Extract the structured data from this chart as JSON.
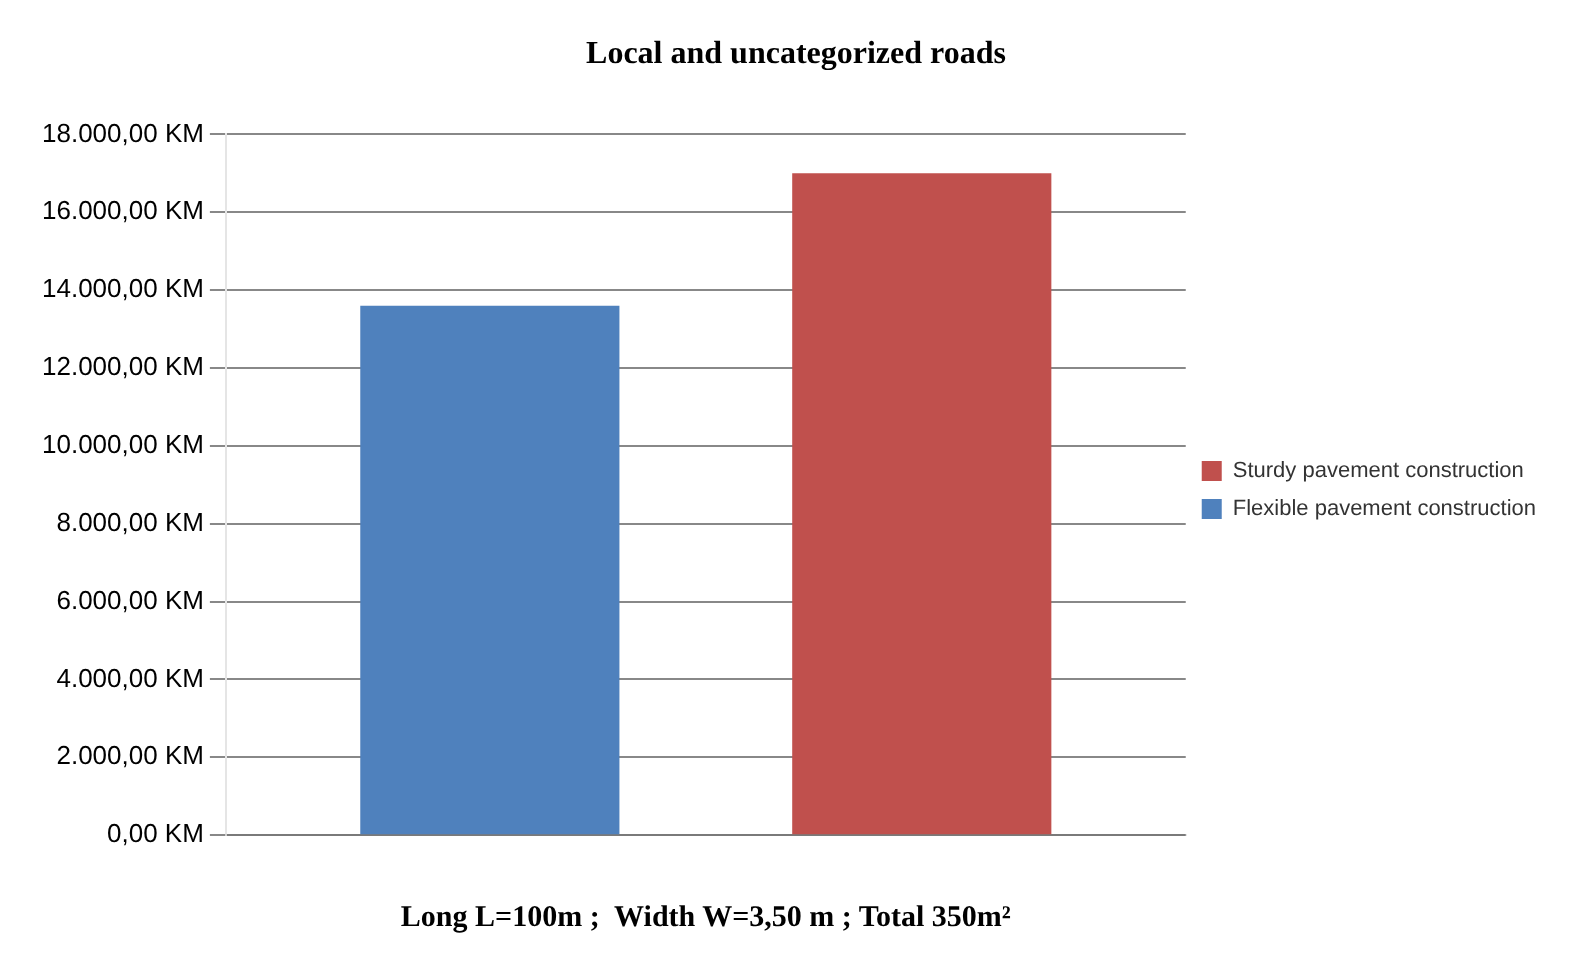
{
  "chart_data": {
    "type": "bar",
    "title": "Local and uncategorized roads",
    "xlabel": "Long L=100m ;  Width W=3,50 m ; Total 350m²",
    "categories": [
      null
    ],
    "series": [
      {
        "name": "Flexible pavement construction",
        "color": "#4f81bd",
        "values": [
          13600
        ]
      },
      {
        "name": "Sturdy pavement construction",
        "color": "#c0504d",
        "values": [
          17000
        ]
      }
    ],
    "ylim": [
      0,
      18000
    ],
    "yticks": [
      {
        "value": 0,
        "label": "0,00 KM"
      },
      {
        "value": 2000,
        "label": "2.000,00 KM"
      },
      {
        "value": 4000,
        "label": "4.000,00 KM"
      },
      {
        "value": 6000,
        "label": "6.000,00 KM"
      },
      {
        "value": 8000,
        "label": "8.000,00 KM"
      },
      {
        "value": 10000,
        "label": "10.000,00 KM"
      },
      {
        "value": 12000,
        "label": "12.000,00 KM"
      },
      {
        "value": 14000,
        "label": "14.000,00 KM"
      },
      {
        "value": 16000,
        "label": "16.000,00 KM"
      },
      {
        "value": 18000,
        "label": "18.000,00 KM"
      }
    ],
    "grid": "y",
    "legend": "right"
  }
}
